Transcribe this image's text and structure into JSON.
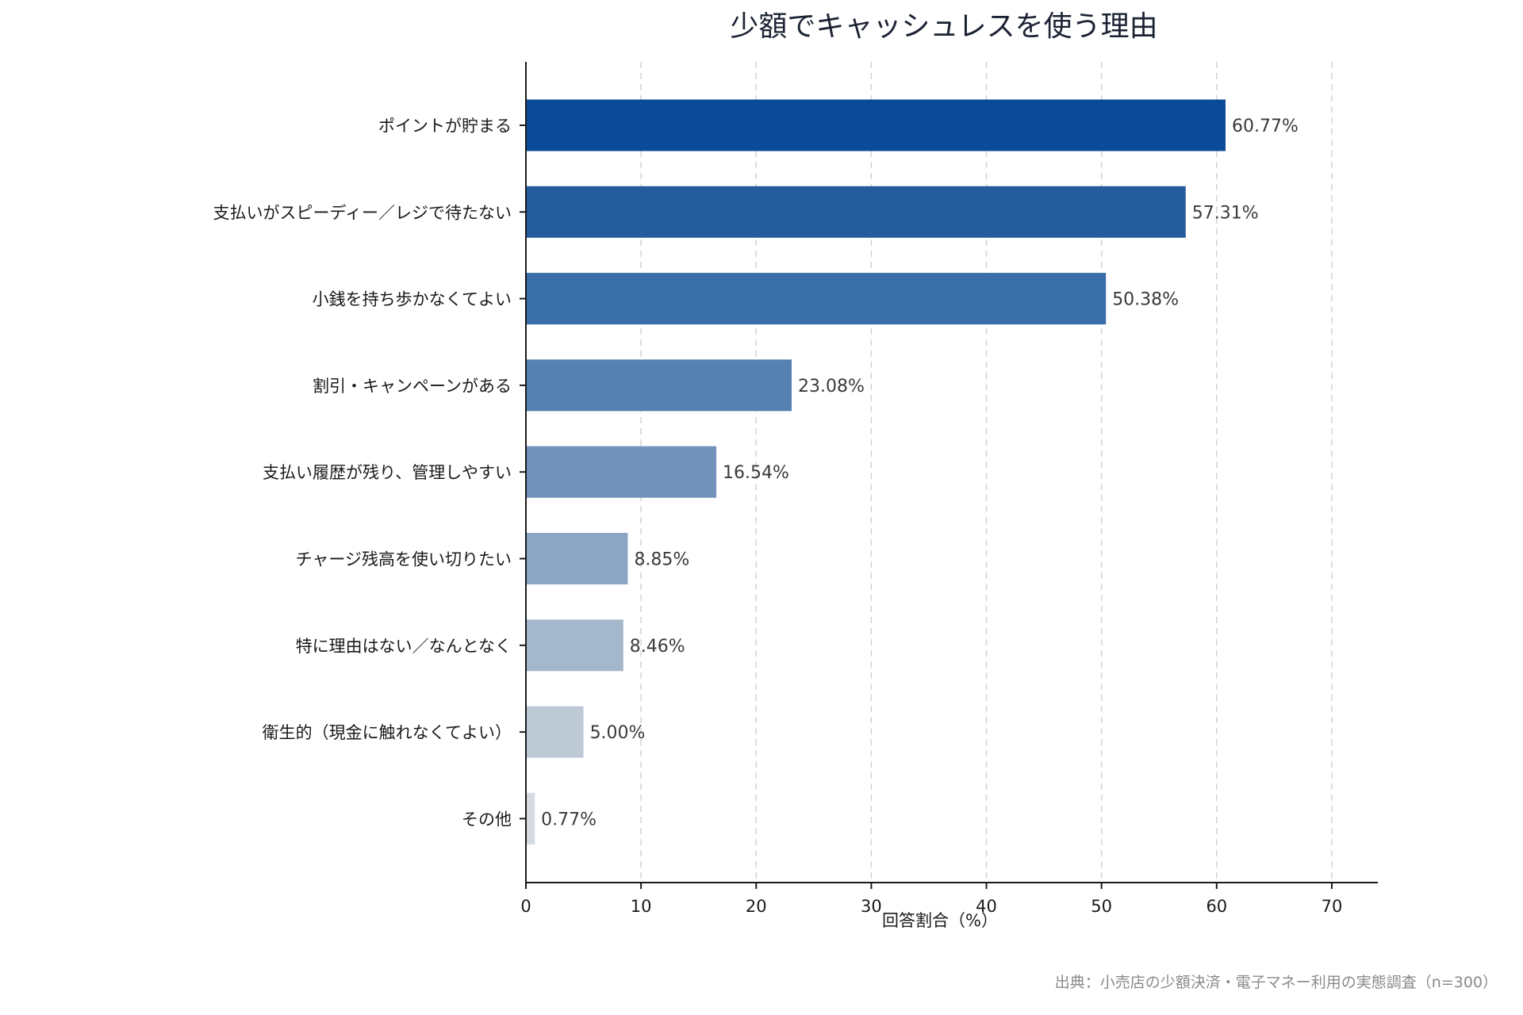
{
  "chart_data": {
    "type": "bar",
    "orientation": "horizontal",
    "title": "少額でキャッシュレスを使う理由",
    "xlabel": "回答割合（%）",
    "ylabel": "",
    "xlim": [
      0,
      74
    ],
    "xticks": [
      0,
      10,
      20,
      30,
      40,
      50,
      60,
      70
    ],
    "grid": "vertical-dashed",
    "categories": [
      "ポイントが貯まる",
      "支払いがスピーディー／レジで待たない",
      "小銭を持ち歩かなくてよい",
      "割引・キャンペーンがある",
      "支払い履歴が残り、管理しやすい",
      "チャージ残高を使い切りたい",
      "特に理由はない／なんとなく",
      "衛生的（現金に触れなくてよい）",
      "その他"
    ],
    "values": [
      60.77,
      57.31,
      50.38,
      23.08,
      16.54,
      8.85,
      8.46,
      5.0,
      0.77
    ],
    "value_labels": [
      "60.77%",
      "57.31%",
      "50.38%",
      "23.08%",
      "16.54%",
      "8.85%",
      "8.46%",
      "5.00%",
      "0.77%"
    ],
    "colors": [
      "#0b4a96",
      "#245c9e",
      "#3a6ea8",
      "#5580b2",
      "#7092bb",
      "#8ba6c3",
      "#a4b7cb",
      "#bdc9d5",
      "#d5dbe1"
    ],
    "source": "出典：小売店の少額決済・電子マネー利用の実態調査（n=300）"
  }
}
